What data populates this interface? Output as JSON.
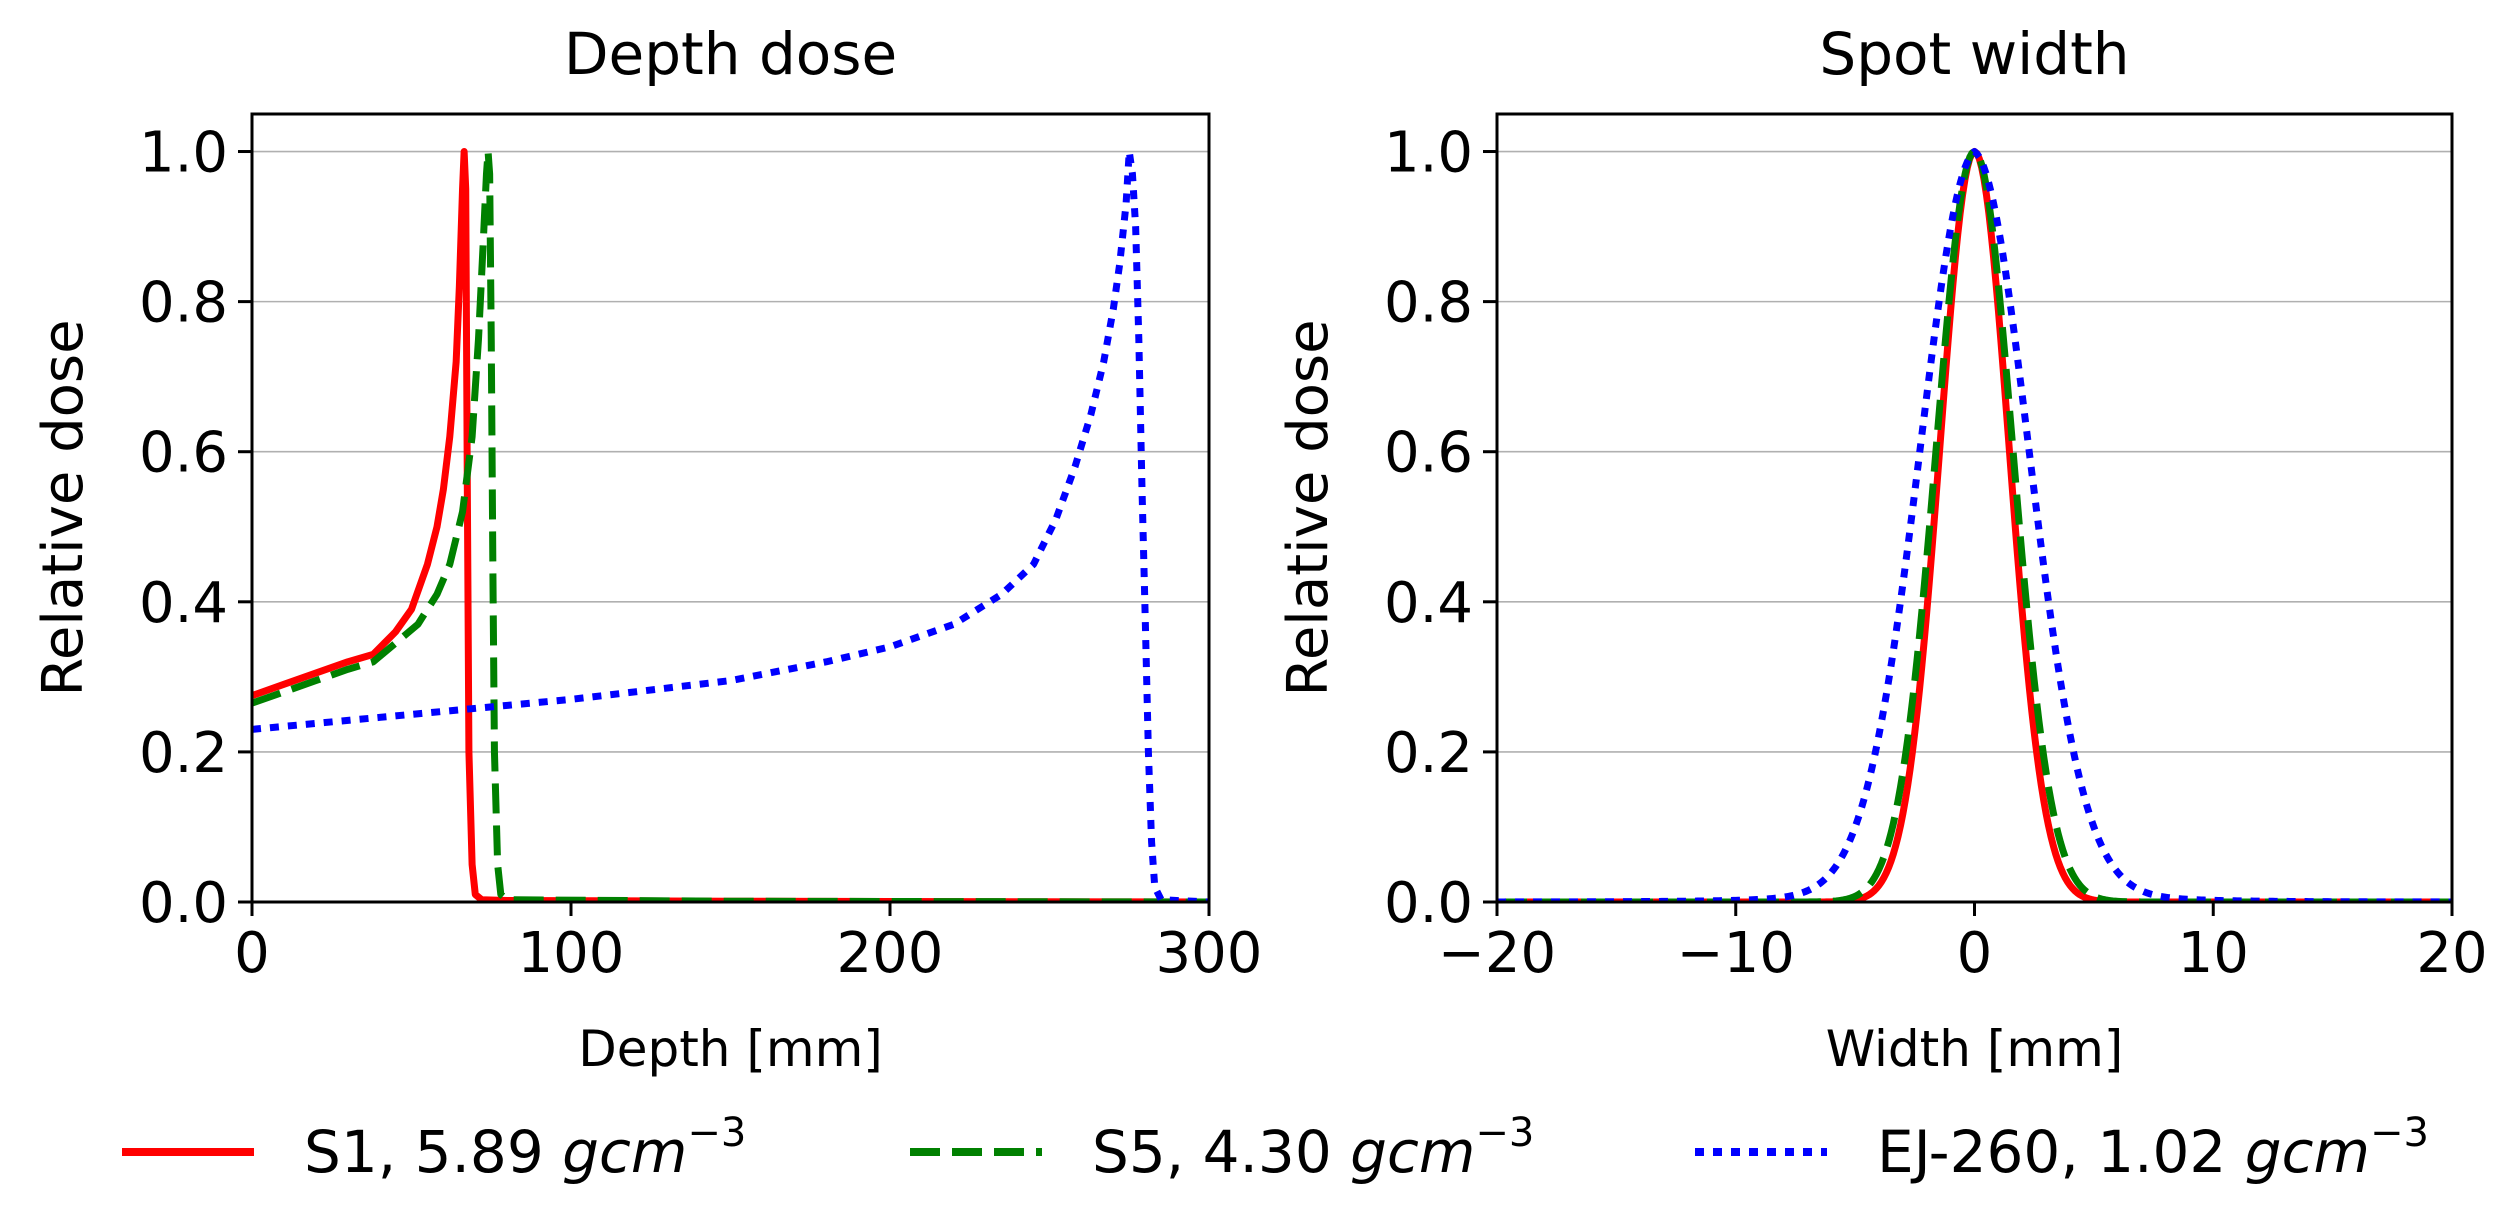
{
  "chart_data": [
    {
      "type": "line",
      "title": "Depth dose",
      "xlabel": "Depth [mm]",
      "ylabel": "Relative dose",
      "xlim": [
        0,
        300
      ],
      "ylim": [
        0,
        1.05
      ],
      "xticks": [
        "0",
        "100",
        "200",
        "300"
      ],
      "yticks": [
        "0.0",
        "0.2",
        "0.4",
        "0.6",
        "0.8",
        "1.0"
      ],
      "grid": "horizontal",
      "series": [
        {
          "name": "S1",
          "color": "#ff0000",
          "dash": "solid",
          "x": [
            0,
            10,
            20,
            30,
            38,
            45,
            50,
            55,
            58,
            60,
            62,
            64,
            65,
            66,
            66.5,
            67,
            67.5,
            68,
            69,
            70,
            72,
            80,
            150,
            300
          ],
          "y": [
            0.275,
            0.29,
            0.305,
            0.32,
            0.33,
            0.36,
            0.39,
            0.45,
            0.5,
            0.55,
            0.62,
            0.72,
            0.82,
            0.95,
            1.0,
            0.95,
            0.55,
            0.2,
            0.05,
            0.01,
            0.003,
            0.002,
            0.001,
            0.0
          ]
        },
        {
          "name": "S5",
          "color": "#008000",
          "dash": "dashed",
          "x": [
            0,
            10,
            20,
            30,
            38,
            45,
            52,
            58,
            62,
            66,
            69,
            71,
            72.5,
            73.5,
            74,
            74.5,
            75,
            75.5,
            76,
            77,
            78,
            80,
            150,
            300
          ],
          "y": [
            0.265,
            0.28,
            0.295,
            0.31,
            0.32,
            0.345,
            0.37,
            0.41,
            0.45,
            0.52,
            0.62,
            0.75,
            0.88,
            0.97,
            1.0,
            0.97,
            0.75,
            0.45,
            0.2,
            0.05,
            0.01,
            0.003,
            0.001,
            0.0
          ]
        },
        {
          "name": "EJ-260",
          "color": "#0000ff",
          "dash": "dotted",
          "x": [
            0,
            50,
            100,
            150,
            180,
            200,
            220,
            235,
            245,
            252,
            258,
            263,
            267,
            270,
            272,
            274,
            275,
            276,
            277,
            278,
            279,
            280,
            281,
            282,
            283,
            285,
            300
          ],
          "y": [
            0.23,
            0.25,
            0.27,
            0.295,
            0.32,
            0.34,
            0.37,
            0.41,
            0.45,
            0.51,
            0.58,
            0.65,
            0.72,
            0.79,
            0.85,
            0.93,
            1.0,
            0.97,
            0.9,
            0.75,
            0.55,
            0.38,
            0.2,
            0.08,
            0.02,
            0.003,
            0.0
          ]
        }
      ]
    },
    {
      "type": "line",
      "title": "Spot width",
      "xlabel": "Width [mm]",
      "ylabel": "Relative dose",
      "xlim": [
        -20,
        20
      ],
      "ylim": [
        0,
        1.05
      ],
      "xticks": [
        "−20",
        "−10",
        "0",
        "10",
        "20"
      ],
      "yticks": [
        "0.0",
        "0.2",
        "0.4",
        "0.6",
        "0.8",
        "1.0"
      ],
      "grid": "horizontal",
      "series": [
        {
          "name": "S1",
          "color": "#ff0000",
          "dash": "solid",
          "shape": "gaussian",
          "center": 0.0,
          "sigma": 1.45,
          "x_start": -20,
          "x_end": 20
        },
        {
          "name": "S5",
          "color": "#008000",
          "dash": "dashed",
          "shape": "gaussian",
          "center": 0.0,
          "sigma": 1.6,
          "x_start": -20,
          "x_end": 20
        },
        {
          "name": "EJ-260",
          "color": "#0000ff",
          "dash": "dotted",
          "shape": "gaussian_tail",
          "center": 0.0,
          "sigma": 2.3,
          "tail_amp": 0.06,
          "tail_scale": 3.0,
          "x_start": -20,
          "x_end": 20
        }
      ]
    }
  ],
  "legend": {
    "placement": "bottom",
    "entries": [
      {
        "label": "S1, 5.89 ",
        "unit": "gcm",
        "exp": "−3",
        "color": "#ff0000",
        "dash": "solid"
      },
      {
        "label": "S5, 4.30 ",
        "unit": "gcm",
        "exp": "−3",
        "color": "#008000",
        "dash": "dashed"
      },
      {
        "label": "EJ-260, 1.02 ",
        "unit": "gcm",
        "exp": "−3",
        "color": "#0000ff",
        "dash": "dotted"
      }
    ]
  }
}
